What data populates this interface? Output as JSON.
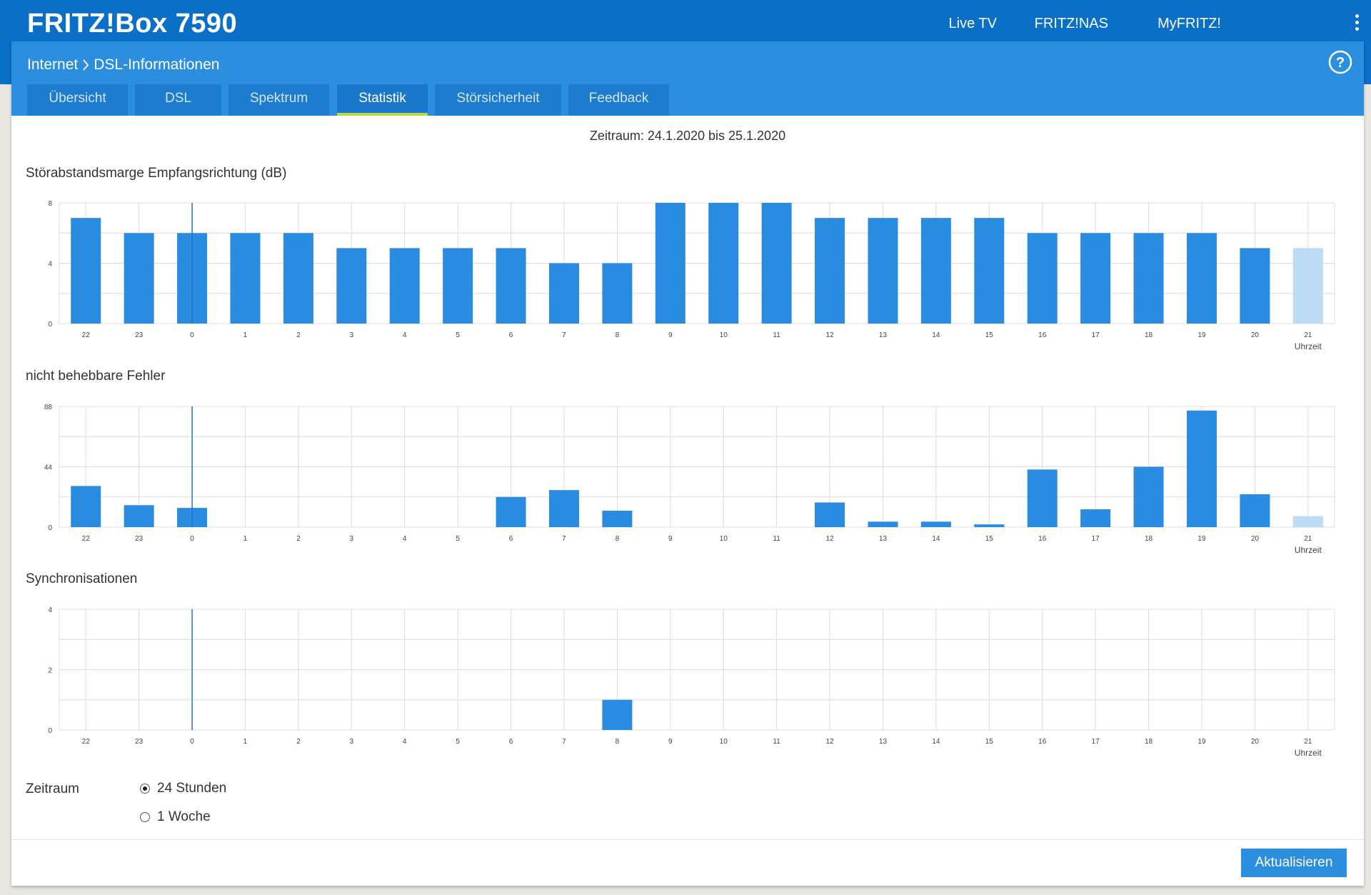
{
  "app": {
    "title": "FRITZ!Box 7590"
  },
  "topnav": [
    {
      "label": "Live TV"
    },
    {
      "label": "FRITZ!NAS"
    },
    {
      "label": "MyFRITZ!"
    }
  ],
  "breadcrumb": {
    "parent": "Internet",
    "current": "DSL-Informationen"
  },
  "tabs": [
    {
      "label": "Übersicht"
    },
    {
      "label": "DSL"
    },
    {
      "label": "Spektrum"
    },
    {
      "label": "Statistik",
      "active": true
    },
    {
      "label": "Störsicherheit"
    },
    {
      "label": "Feedback"
    }
  ],
  "period_text": "Zeitraum: 24.1.2020 bis 25.1.2020",
  "chart_data": [
    {
      "type": "bar",
      "title": "Störabstandsmarge Empfangsrichtung (dB)",
      "xlabel": "Uhrzeit",
      "ylabel": "",
      "categories": [
        "22",
        "23",
        "0",
        "1",
        "2",
        "3",
        "4",
        "5",
        "6",
        "7",
        "8",
        "9",
        "10",
        "11",
        "12",
        "13",
        "14",
        "15",
        "16",
        "17",
        "18",
        "19",
        "20",
        "21"
      ],
      "values": [
        7,
        6,
        6,
        6,
        6,
        5,
        5,
        5,
        5,
        4,
        4,
        8,
        8,
        8,
        7,
        7,
        7,
        7,
        6,
        6,
        6,
        6,
        5,
        5
      ],
      "ylim": [
        0,
        8
      ],
      "yticks": [
        0,
        4,
        8
      ],
      "grid": true,
      "day_marker": "0",
      "current_category": "21"
    },
    {
      "type": "bar",
      "title": "nicht behebbare Fehler",
      "xlabel": "Uhrzeit",
      "ylabel": "",
      "categories": [
        "22",
        "23",
        "0",
        "1",
        "2",
        "3",
        "4",
        "5",
        "6",
        "7",
        "8",
        "9",
        "10",
        "11",
        "12",
        "13",
        "14",
        "15",
        "16",
        "17",
        "18",
        "19",
        "20",
        "21"
      ],
      "values": [
        30,
        16,
        14,
        0,
        0,
        0,
        0,
        0,
        22,
        27,
        12,
        0,
        0,
        0,
        18,
        4,
        4,
        2,
        42,
        13,
        44,
        85,
        24,
        8
      ],
      "ylim": [
        0,
        88
      ],
      "yticks": [
        0,
        44,
        88
      ],
      "grid": true,
      "day_marker": "0",
      "current_category": "21"
    },
    {
      "type": "bar",
      "title": "Synchronisationen",
      "xlabel": "Uhrzeit",
      "ylabel": "",
      "categories": [
        "22",
        "23",
        "0",
        "1",
        "2",
        "3",
        "4",
        "5",
        "6",
        "7",
        "8",
        "9",
        "10",
        "11",
        "12",
        "13",
        "14",
        "15",
        "16",
        "17",
        "18",
        "19",
        "20",
        "21"
      ],
      "values": [
        0,
        0,
        0,
        0,
        0,
        0,
        0,
        0,
        0,
        0,
        1,
        0,
        0,
        0,
        0,
        0,
        0,
        0,
        0,
        0,
        0,
        0,
        0,
        0
      ],
      "ylim": [
        0,
        4
      ],
      "yticks": [
        0,
        2,
        4
      ],
      "grid": true,
      "day_marker": "0",
      "current_category": "21"
    }
  ],
  "range": {
    "label": "Zeitraum",
    "options": [
      {
        "label": "24 Stunden",
        "checked": true
      },
      {
        "label": "1 Woche",
        "checked": false
      }
    ]
  },
  "refresh_button": "Aktualisieren",
  "colors": {
    "header": "#0a6fc6",
    "subheader": "#2b8ede",
    "bar": "#2a8ce0",
    "bar_current": "#bcdbf5",
    "tab_indicator": "#b6d94b"
  }
}
